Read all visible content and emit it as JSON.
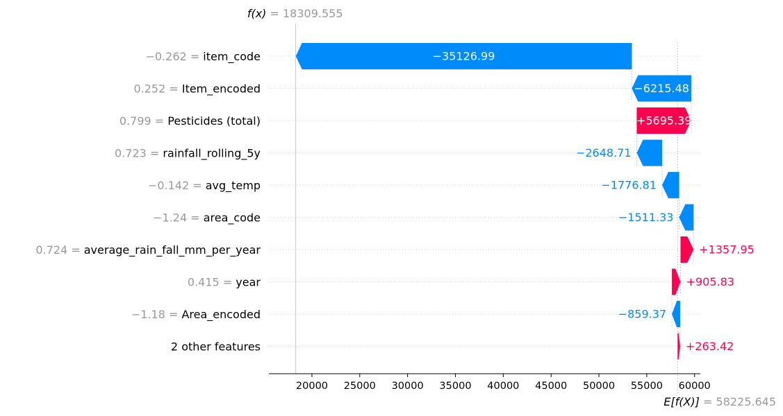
{
  "chart_data": {
    "type": "waterfall",
    "fx_label": "f(x)",
    "fx_value_text": "= 18309.555",
    "fx_value": 18309.555,
    "ex_label": "E[f(X)]",
    "ex_value_text": "= 58225.645",
    "ex_value": 58225.645,
    "xlim": [
      15500,
      60600
    ],
    "xticks": [
      20000,
      25000,
      30000,
      35000,
      40000,
      45000,
      50000,
      55000,
      60000
    ],
    "features": [
      {
        "value_text": "−0.262 =",
        "name": "item_code",
        "contribution": -35126.99,
        "label": "−35126.99"
      },
      {
        "value_text": "0.252 =",
        "name": "Item_encoded",
        "contribution": -6215.48,
        "label": "−6215.48"
      },
      {
        "value_text": "0.799 =",
        "name": "Pesticides (total)",
        "contribution": 5695.39,
        "label": "+5695.39"
      },
      {
        "value_text": "0.723 =",
        "name": "rainfall_rolling_5y",
        "contribution": -2648.71,
        "label": "−2648.71"
      },
      {
        "value_text": "−0.142 =",
        "name": "avg_temp",
        "contribution": -1776.81,
        "label": "−1776.81"
      },
      {
        "value_text": "−1.24 =",
        "name": "area_code",
        "contribution": -1511.33,
        "label": "−1511.33"
      },
      {
        "value_text": "0.724 =",
        "name": "average_rain_fall_mm_per_year",
        "contribution": 1357.95,
        "label": "+1357.95"
      },
      {
        "value_text": "0.415 =",
        "name": "year",
        "contribution": 905.83,
        "label": "+905.83"
      },
      {
        "value_text": "−1.18 =",
        "name": "Area_encoded",
        "contribution": -859.37,
        "label": "−859.37"
      },
      {
        "value_text": "",
        "name": "2 other features",
        "contribution": 263.42,
        "label": "+263.42"
      }
    ],
    "colors": {
      "positive": "#ff0051",
      "negative": "#008bfb",
      "muted": "#999999"
    }
  }
}
